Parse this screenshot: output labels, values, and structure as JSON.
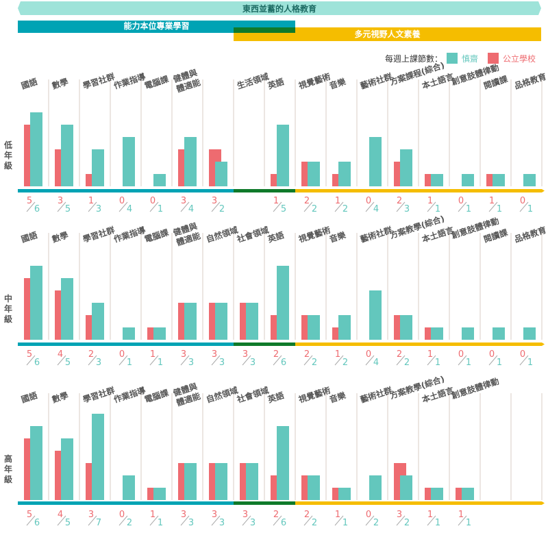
{
  "title": "東西並蓄的人格教育",
  "bands": {
    "ability": "能力本位專業學習",
    "humanities": "多元視野人文素養"
  },
  "legend": {
    "prefix": "每週上課節數：",
    "series_a": "慎齋",
    "series_b": "公立學校"
  },
  "colors": {
    "shenzhai": "#63c7bd",
    "public": "#ee6b70",
    "accent_teal": "#00a3b4",
    "accent_green": "#0f7a2a",
    "accent_yellow": "#f5bd00",
    "fraction_text": "#ee6b70",
    "fraction_denominator": "#63c7bd",
    "banner": "#9ee3d9"
  },
  "chart_data": [
    {
      "type": "bar",
      "title": "低年級",
      "categories": [
        "國語",
        "數學",
        "學習社群",
        "作業指導",
        "電腦課",
        "健體與體適能",
        "",
        "生活領域",
        "英語",
        "視覺藝術",
        "音樂",
        "藝術社群",
        "方案課程(綜合)",
        "本土語言",
        "創意肢體律動",
        "閱讀課",
        "品格教育"
      ],
      "series": [
        {
          "name": "公立學校",
          "values": [
            5,
            3,
            1,
            0,
            0,
            3,
            3,
            null,
            1,
            2,
            1,
            0,
            2,
            1,
            0,
            1,
            0
          ]
        },
        {
          "name": "慎齋",
          "values": [
            6,
            5,
            3,
            4,
            1,
            4,
            2,
            null,
            5,
            2,
            2,
            4,
            3,
            1,
            1,
            1,
            1
          ]
        }
      ]
    },
    {
      "type": "bar",
      "title": "中年級",
      "categories": [
        "國語",
        "數學",
        "學習社群",
        "作業指導",
        "電腦課",
        "健體與體適能",
        "自然領域",
        "社會領域",
        "英語",
        "視覺藝術",
        "音樂",
        "藝術社群",
        "方案教學(綜合)",
        "本土語言",
        "創意肢體律動",
        "閱讀課",
        "品格教育"
      ],
      "series": [
        {
          "name": "公立學校",
          "values": [
            5,
            4,
            2,
            0,
            1,
            3,
            3,
            3,
            2,
            2,
            1,
            0,
            2,
            1,
            0,
            0,
            0
          ]
        },
        {
          "name": "慎齋",
          "values": [
            6,
            5,
            3,
            1,
            1,
            3,
            3,
            3,
            6,
            2,
            2,
            4,
            2,
            1,
            1,
            1,
            1
          ]
        }
      ]
    },
    {
      "type": "bar",
      "title": "高年級",
      "categories": [
        "國語",
        "數學",
        "學習社群",
        "作業指導",
        "電腦課",
        "健體與體適能",
        "自然領域",
        "社會領域",
        "英語",
        "視覺藝術",
        "音樂",
        "藝術社群",
        "方案教學(綜合)",
        "本土語言",
        "創意肢體律動",
        "",
        ""
      ],
      "series": [
        {
          "name": "公立學校",
          "values": [
            5,
            4,
            3,
            0,
            1,
            3,
            3,
            3,
            2,
            2,
            1,
            0,
            3,
            1,
            1,
            null,
            null
          ]
        },
        {
          "name": "慎齋",
          "values": [
            6,
            5,
            7,
            2,
            1,
            3,
            3,
            3,
            6,
            2,
            1,
            2,
            2,
            1,
            1,
            null,
            null
          ]
        }
      ]
    }
  ]
}
